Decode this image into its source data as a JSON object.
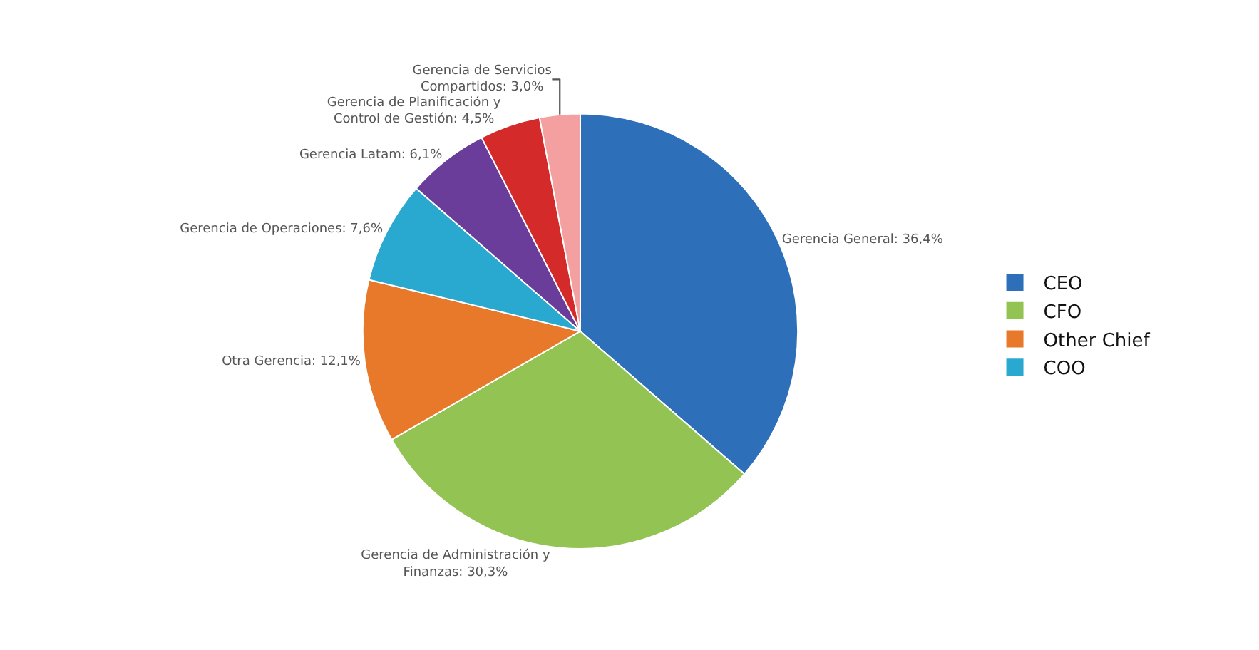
{
  "chart_data": {
    "type": "pie",
    "categories": [
      "CEO",
      "CFO",
      "Other Chief",
      "COO",
      null,
      null,
      null
    ],
    "values": [
      36.4,
      30.3,
      12.1,
      7.6,
      6.1,
      4.5,
      3.0
    ],
    "colors": [
      "#2e6fba",
      "#92c353",
      "#e8782a",
      "#29a8d0",
      "#6a3d9a",
      "#d42a2a",
      "#f4a0a0"
    ],
    "value_labels": [
      "Gerencia General: 36,4%",
      "Gerencia de Administración y\nFinanzas: 30,3%",
      "Otra Gerencia: 12,1%",
      "Gerencia de Operaciones: 7,6%",
      "Gerencia Latam: 6,1%",
      "Gerencia de Planificación y\nControl de Gestión: 4,5%",
      "Gerencia de Servicios\nCompartidos: 3,0%"
    ],
    "legend": "right"
  }
}
